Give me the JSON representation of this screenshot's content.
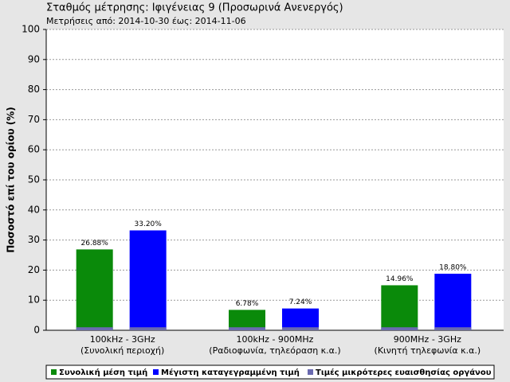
{
  "chart_data": {
    "type": "bar",
    "title": "Σταθμός μέτρησης: Ιφιγένειας 9 (Προσωρινά Ανενεργός)",
    "subtitle": "Μετρήσεις από: 2014-10-30 έως: 2014-11-06",
    "y_label": "Ποσοστό επί του ορίου (%)",
    "categories": [
      [
        "100kHz - 3GHz",
        "(Συνολική περιοχή)"
      ],
      [
        "100kHz - 900MHz",
        "(Ραδιοφωνία, τηλεόραση κ.α.)"
      ],
      [
        "900MHz - 3GHz",
        "(Κινητή τηλεφωνία κ.α.)"
      ]
    ],
    "series": [
      {
        "name": "Συνολική μέση τιμή",
        "color": "#0a8a0a",
        "values": [
          26.88,
          6.78,
          14.96
        ],
        "value_labels": [
          "26.88%",
          "6.78%",
          "14.96%"
        ]
      },
      {
        "name": "Μέγιστη καταγεγραμμένη τιμή",
        "color": "#0000ff",
        "values": [
          33.2,
          7.24,
          18.8
        ],
        "value_labels": [
          "33.20%",
          "7.24%",
          "18.80%"
        ]
      },
      {
        "name": "Τιμές μικρότερες ευαισθησίας οργάνου",
        "color": "#6a6ab0",
        "values": [
          1,
          1,
          1
        ]
      }
    ],
    "ylim": [
      0,
      100
    ],
    "yticks": [
      0,
      10,
      20,
      30,
      40,
      50,
      60,
      70,
      80,
      90,
      100
    ],
    "grid": true
  }
}
